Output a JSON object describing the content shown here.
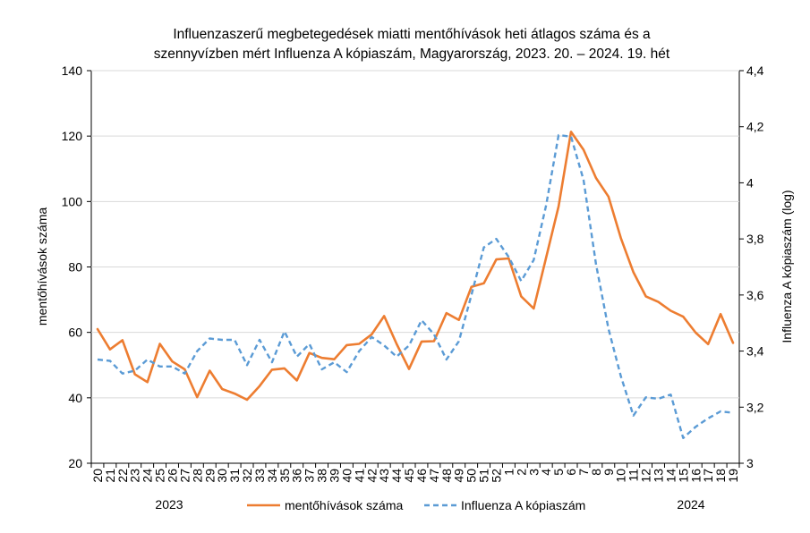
{
  "chart_data": {
    "type": "line",
    "title_lines": [
      "Influenzaszerű megbetegedések miatti mentőhívások heti átlagos száma és a",
      "szennyvízben mért Influenza A kópiaszám, Magyarország, 2023. 20. – 2024. 19. hét"
    ],
    "ylabel": "mentőhívások száma",
    "y2label": "Influenza A kópiaszám (log)",
    "ylim": [
      20,
      140
    ],
    "yticks": [
      "20",
      "40",
      "60",
      "80",
      "100",
      "120",
      "140"
    ],
    "y2lim": [
      3,
      4.4
    ],
    "y2ticks": [
      "3",
      "3,2",
      "3,4",
      "3,6",
      "3,8",
      "4",
      "4,2",
      "4,4"
    ],
    "categories": [
      "20",
      "21",
      "22",
      "23",
      "24",
      "25",
      "26",
      "27",
      "28",
      "29",
      "30",
      "31",
      "32",
      "33",
      "34",
      "35",
      "36",
      "37",
      "38",
      "39",
      "40",
      "41",
      "42",
      "43",
      "44",
      "45",
      "46",
      "47",
      "48",
      "49",
      "50",
      "51",
      "52",
      "1",
      "2",
      "3",
      "4",
      "5",
      "6",
      "7",
      "8",
      "9",
      "10",
      "11",
      "12",
      "13",
      "14",
      "15",
      "16",
      "17",
      "18",
      "19"
    ],
    "year_labels": [
      "2023",
      "2024"
    ],
    "series": [
      {
        "name": "mentőhívások száma",
        "axis": "left",
        "color": "#ed7d31",
        "values": [
          61,
          54.8,
          57.6,
          47.2,
          44.8,
          56.5,
          51.1,
          48.7,
          40.2,
          48.3,
          42.7,
          41.3,
          39.4,
          43.6,
          48.6,
          49,
          45.3,
          53.7,
          52.2,
          51.8,
          56.1,
          56.5,
          59.4,
          65,
          56.5,
          48.8,
          57.2,
          57.3,
          65.9,
          63.8,
          73.9,
          75,
          82.3,
          82.6,
          71,
          67.3,
          82.9,
          98.5,
          121.3,
          115.8,
          107.2,
          101.5,
          88.8,
          78.4,
          71,
          69.3,
          66.6,
          64.8,
          59.9,
          56.4,
          65.6,
          56.8
        ]
      },
      {
        "name": "Influenza A kópiaszám",
        "axis": "right",
        "color": "#5b9bd5",
        "values": [
          3.37,
          3.365,
          3.32,
          3.33,
          3.37,
          3.345,
          3.345,
          3.32,
          3.4,
          3.445,
          3.44,
          3.44,
          3.35,
          3.44,
          3.36,
          3.47,
          3.38,
          3.425,
          3.335,
          3.36,
          3.325,
          3.4,
          3.45,
          3.42,
          3.38,
          3.42,
          3.51,
          3.46,
          3.37,
          3.435,
          3.6,
          3.77,
          3.8,
          3.735,
          3.65,
          3.725,
          3.92,
          4.17,
          4.165,
          4.01,
          3.71,
          3.48,
          3.31,
          3.17,
          3.235,
          3.23,
          3.245,
          3.09,
          3.13,
          3.16,
          3.185,
          3.18
        ]
      }
    ]
  }
}
